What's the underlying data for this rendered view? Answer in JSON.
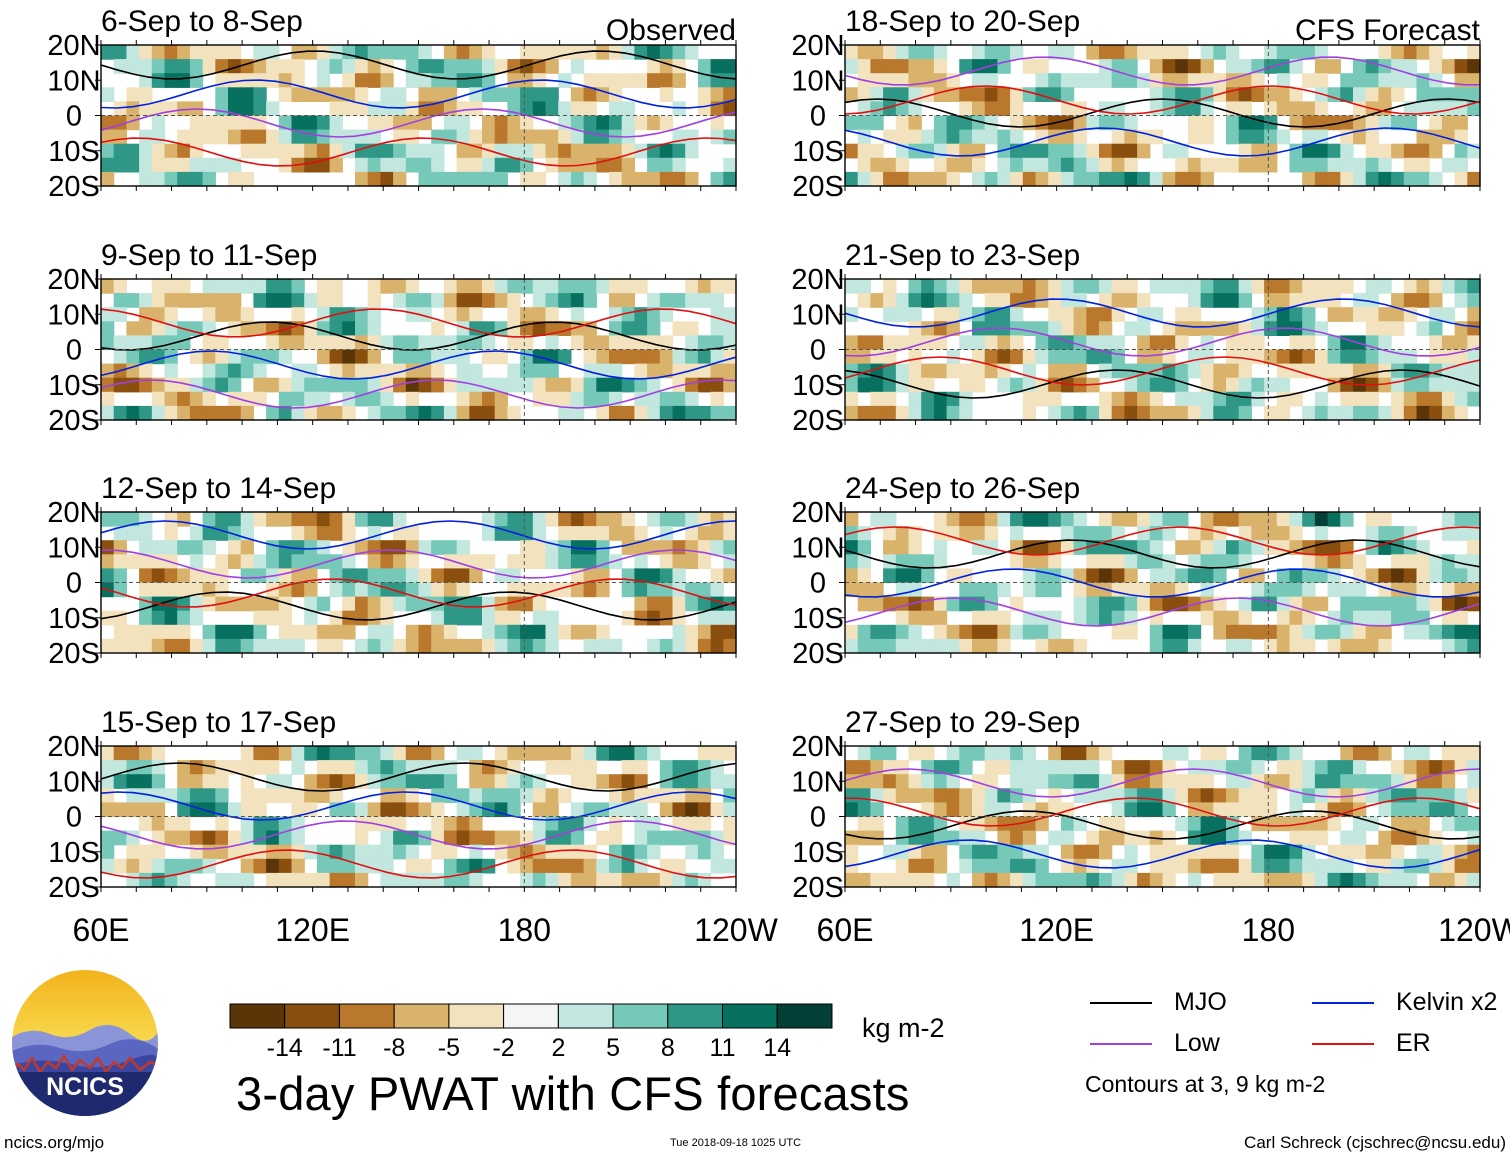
{
  "columns": {
    "observed_label": "Observed",
    "forecast_label": "CFS Forecast"
  },
  "panels": [
    {
      "period": "6-Sep to 8-Sep",
      "column": "observed"
    },
    {
      "period": "9-Sep to 11-Sep",
      "column": "observed"
    },
    {
      "period": "12-Sep to 14-Sep",
      "column": "observed"
    },
    {
      "period": "15-Sep to 17-Sep",
      "column": "observed"
    },
    {
      "period": "18-Sep to 20-Sep",
      "column": "forecast"
    },
    {
      "period": "21-Sep to 23-Sep",
      "column": "forecast"
    },
    {
      "period": "24-Sep to 26-Sep",
      "column": "forecast"
    },
    {
      "period": "27-Sep to 29-Sep",
      "column": "forecast"
    }
  ],
  "axes": {
    "y_ticks": [
      "20N",
      "10N",
      "0",
      "10S",
      "20S"
    ],
    "x_ticks": [
      "60E",
      "120E",
      "180",
      "120W"
    ]
  },
  "colorbar": {
    "tick_labels": [
      "-14",
      "-11",
      "-8",
      "-5",
      "-2",
      "2",
      "5",
      "8",
      "11",
      "14"
    ],
    "colors": [
      "#5b3508",
      "#8a4f0f",
      "#b9782b",
      "#d9b36b",
      "#f3e2be",
      "#f5f5f5",
      "#c2e7df",
      "#76c8b9",
      "#2f9786",
      "#07705f",
      "#033f36"
    ],
    "units": "kg m-2"
  },
  "legend": {
    "items": [
      {
        "label": "MJO",
        "color": "#000000"
      },
      {
        "label": "Kelvin x2",
        "color": "#0022dd"
      },
      {
        "label": "Low",
        "color": "#a040e0"
      },
      {
        "label": "ER",
        "color": "#e01010"
      }
    ],
    "contour_note": "Contours at 3, 9 kg m-2"
  },
  "title": "3-day PWAT with CFS forecasts",
  "logo_text": "NCICS",
  "footer": {
    "url": "ncics.org/mjo",
    "timestamp": "Tue 2018-09-18 1025 UTC",
    "credit": "Carl Schreck (cjschrec@ncsu.edu)"
  },
  "chart_data": [
    {
      "type": "heatmap",
      "title": "6-Sep to 8-Sep",
      "panel_label": "Observed",
      "x_range": [
        "60E",
        "120W"
      ],
      "y_range": [
        "20S",
        "20N"
      ]
    },
    {
      "type": "heatmap",
      "title": "9-Sep to 11-Sep",
      "x_range": [
        "60E",
        "120W"
      ],
      "y_range": [
        "20S",
        "20N"
      ]
    },
    {
      "type": "heatmap",
      "title": "12-Sep to 14-Sep",
      "x_range": [
        "60E",
        "120W"
      ],
      "y_range": [
        "20S",
        "20N"
      ]
    },
    {
      "type": "heatmap",
      "title": "15-Sep to 17-Sep",
      "x_range": [
        "60E",
        "120W"
      ],
      "y_range": [
        "20S",
        "20N"
      ]
    },
    {
      "type": "heatmap",
      "title": "18-Sep to 20-Sep",
      "panel_label": "CFS Forecast",
      "x_range": [
        "60E",
        "120W"
      ],
      "y_range": [
        "20S",
        "20N"
      ]
    },
    {
      "type": "heatmap",
      "title": "21-Sep to 23-Sep",
      "x_range": [
        "60E",
        "120W"
      ],
      "y_range": [
        "20S",
        "20N"
      ]
    },
    {
      "type": "heatmap",
      "title": "24-Sep to 26-Sep",
      "x_range": [
        "60E",
        "120W"
      ],
      "y_range": [
        "20S",
        "20N"
      ]
    },
    {
      "type": "heatmap",
      "title": "27-Sep to 29-Sep",
      "x_range": [
        "60E",
        "120W"
      ],
      "y_range": [
        "20S",
        "20N"
      ]
    }
  ]
}
